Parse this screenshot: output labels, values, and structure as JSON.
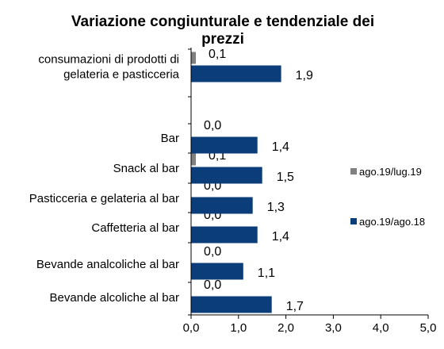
{
  "chart_data": {
    "type": "bar",
    "orientation": "horizontal",
    "title_lines": [
      "Variazione congiunturale e tendenziale dei",
      "prezzi"
    ],
    "categories": [
      [
        "consumazioni di prodotti di",
        "gelateria e pasticceria"
      ],
      [
        "Bar"
      ],
      [
        "Snack al bar"
      ],
      [
        "Pasticceria e gelateria al bar"
      ],
      [
        "Caffetteria al bar"
      ],
      [
        "Bevande analcoliche al bar"
      ],
      [
        "Bevande alcoliche al bar"
      ]
    ],
    "series": [
      {
        "name": "ago.19/lug.19",
        "color": "#808080",
        "values": [
          0.1,
          0.0,
          0.1,
          0.0,
          0.0,
          0.0,
          0.0
        ],
        "labels": [
          "0,1",
          "0,0",
          "0,1",
          "0,0",
          "0,0",
          "0,0",
          "0,0"
        ]
      },
      {
        "name": "ago.19/ago.18",
        "color": "#0b3d7a",
        "values": [
          1.9,
          1.4,
          1.5,
          1.3,
          1.4,
          1.1,
          1.7
        ],
        "labels": [
          "1,9",
          "1,4",
          "1,5",
          "1,3",
          "1,4",
          "1,1",
          "1,7"
        ]
      }
    ],
    "xlim": [
      0,
      5
    ],
    "xticks": [
      0,
      1,
      2,
      3,
      4,
      5
    ],
    "xtick_labels": [
      "0,0",
      "1,0",
      "2,0",
      "3,0",
      "4,0",
      "5,0"
    ],
    "grid": false,
    "legend_position": "right"
  }
}
